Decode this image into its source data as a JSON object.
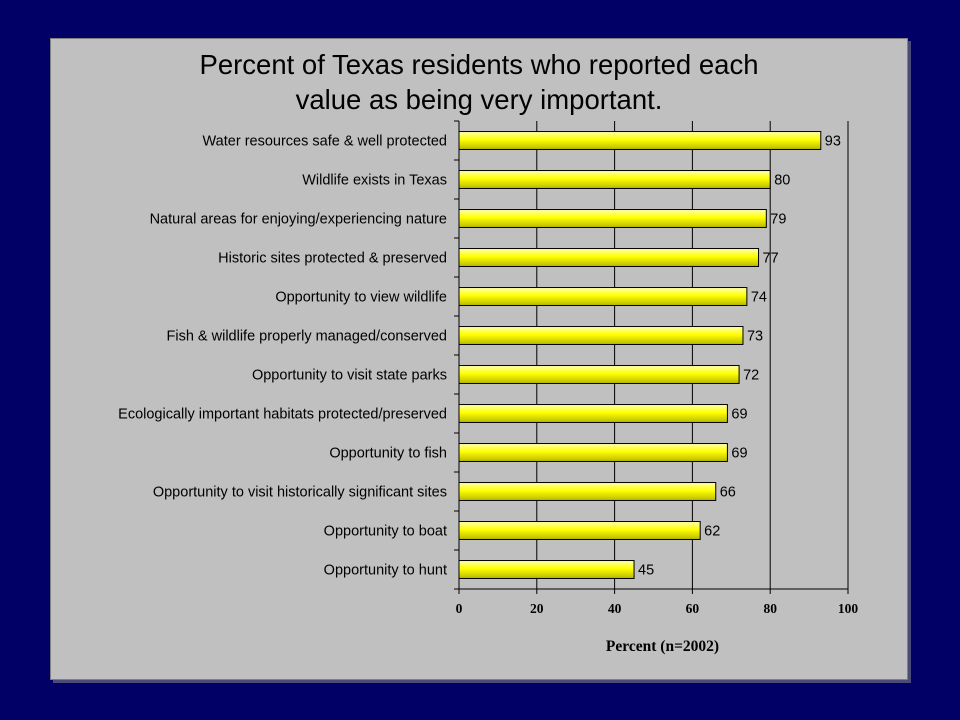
{
  "slide": {
    "background_color": "#000066",
    "panel_color": "#c0c0c0"
  },
  "chart_data": {
    "type": "bar",
    "orientation": "horizontal",
    "title_lines": [
      "Percent of Texas residents who reported each",
      "value as being very important."
    ],
    "categories": [
      "Water resources safe & well protected",
      "Wildlife exists in Texas",
      "Natural areas for enjoying/experiencing nature",
      "Historic sites protected & preserved",
      "Opportunity to view wildlife",
      "Fish & wildlife properly managed/conserved",
      "Opportunity to visit state parks",
      "Ecologically important habitats protected/preserved",
      "Opportunity to fish",
      "Opportunity to visit historically significant sites",
      "Opportunity to boat",
      "Opportunity to hunt"
    ],
    "values": [
      93,
      80,
      79,
      77,
      74,
      73,
      72,
      69,
      69,
      66,
      62,
      45
    ],
    "xlabel": "Percent (n=2002)",
    "ylabel": "",
    "xlim": [
      0,
      100
    ],
    "xticks": [
      0,
      20,
      40,
      60,
      80,
      100
    ],
    "grid": "vertical gridlines",
    "legend": "none",
    "bar_color": "#ffff00",
    "bar_edge_color": "#000000"
  }
}
